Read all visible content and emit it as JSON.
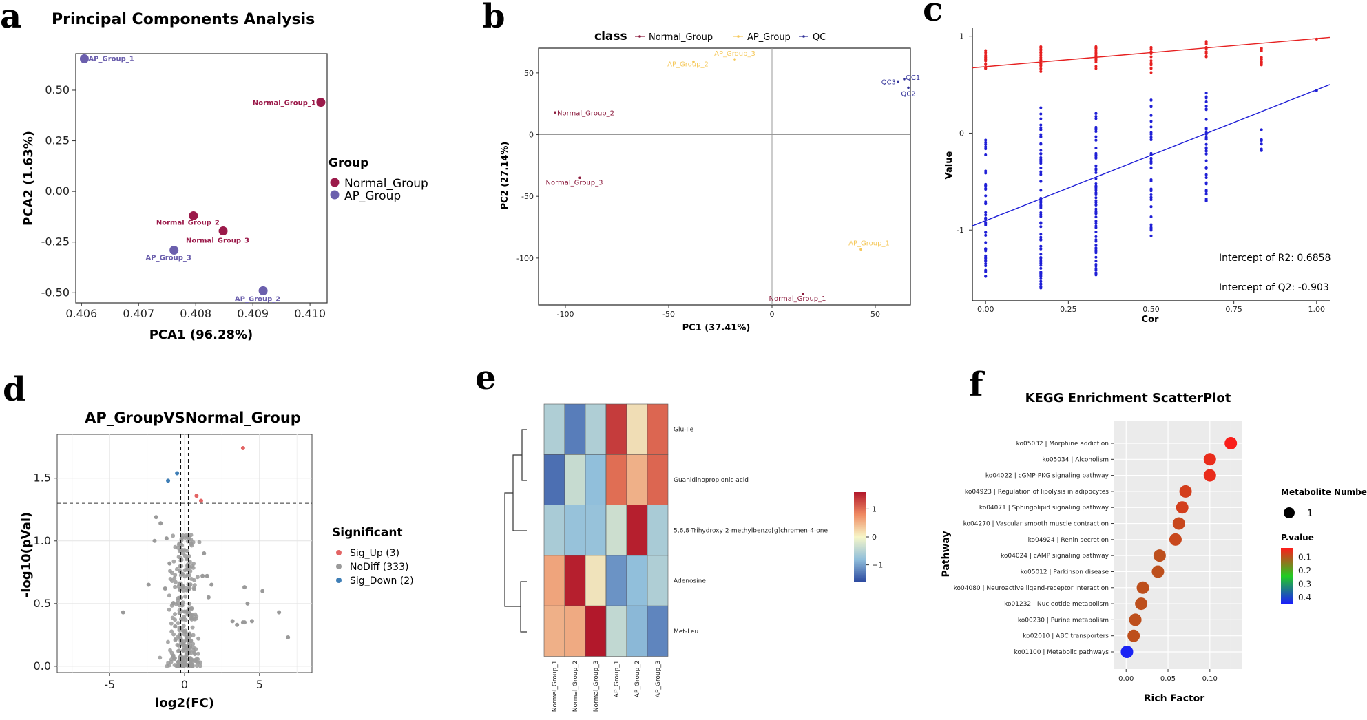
{
  "colors": {
    "normal": "#9b1a4a",
    "ap": "#6b5fad",
    "normal_b": "#8b1a3c",
    "ap_b": "#f5c85a",
    "qc": "#33339a",
    "red": "#e62020",
    "blue": "#1f1fd6",
    "sig_up": "#e36464",
    "nodiff": "#9a9a9a",
    "sig_down": "#3e7eb6"
  },
  "panels": {
    "a": "a",
    "b": "b",
    "c": "c",
    "d": "d",
    "e": "e",
    "f": "f"
  },
  "chart_data": [
    {
      "id": "a",
      "type": "scatter",
      "title": "Principal Components Analysis",
      "xlabel": "PCA1 (96.28%)",
      "ylabel": "PCA2 (1.63%)",
      "xlim": [
        0.4059,
        0.4103
      ],
      "ylim": [
        -0.55,
        0.68
      ],
      "xticks": [
        0.406,
        0.407,
        0.408,
        0.409,
        0.41
      ],
      "xtick_labels": [
        "0.406",
        "0.407",
        "0.408",
        "0.409",
        "0.410"
      ],
      "yticks": [
        -0.5,
        -0.25,
        0,
        0.25,
        0.5
      ],
      "ytick_labels": [
        "-0.50",
        "-0.25",
        "0.00",
        "0.25",
        "0.50"
      ],
      "legend_title": "Group",
      "legend": [
        "Normal_Group",
        "AP_Group"
      ],
      "points": [
        {
          "label": "AP_Group_1",
          "group": "ap",
          "x": 0.40605,
          "y": 0.655
        },
        {
          "label": "Normal_Group_1",
          "group": "normal",
          "x": 0.41019,
          "y": 0.44
        },
        {
          "label": "Normal_Group_2",
          "group": "normal",
          "x": 0.40796,
          "y": -0.12
        },
        {
          "label": "Normal_Group_3",
          "group": "normal",
          "x": 0.40848,
          "y": -0.195
        },
        {
          "label": "AP_Group_3",
          "group": "ap",
          "x": 0.40762,
          "y": -0.29
        },
        {
          "label": "AP_Group_2",
          "group": "ap",
          "x": 0.40918,
          "y": -0.49
        }
      ]
    },
    {
      "id": "b",
      "type": "scatter",
      "xlabel": "PC1 (37.41%)",
      "ylabel": "PC2 (27.14%)",
      "xlim": [
        -113,
        67
      ],
      "ylim": [
        -138,
        70
      ],
      "xticks": [
        -100,
        -50,
        0,
        50
      ],
      "xtick_labels": [
        "-100",
        "-50",
        "0",
        "50"
      ],
      "yticks": [
        50,
        0,
        -50,
        -100
      ],
      "ytick_labels": [
        "50",
        "0",
        "-50",
        "-100"
      ],
      "legend_title": "class",
      "legend": [
        "Normal_Group",
        "AP_Group",
        "QC"
      ],
      "points": [
        {
          "label": "AP_Group_3",
          "group": "ap",
          "x": -18,
          "y": 61
        },
        {
          "label": "AP_Group_2",
          "group": "ap",
          "x": -38,
          "y": 59
        },
        {
          "label": "Normal_Group_2",
          "group": "normal",
          "x": -105,
          "y": 18
        },
        {
          "label": "Normal_Group_3",
          "group": "normal",
          "x": -93,
          "y": -35
        },
        {
          "label": "QC3",
          "group": "qc",
          "x": 61,
          "y": 43
        },
        {
          "label": "QC1",
          "group": "qc",
          "x": 64,
          "y": 45
        },
        {
          "label": "QC2",
          "group": "qc",
          "x": 66,
          "y": 38
        },
        {
          "label": "AP_Group_1",
          "group": "ap",
          "x": 43,
          "y": -93
        },
        {
          "label": "Normal_Group_1",
          "group": "normal",
          "x": 15,
          "y": -129
        }
      ]
    },
    {
      "id": "c",
      "type": "scatter",
      "xlabel": "Cor",
      "ylabel": "Value",
      "xlim": [
        -0.04,
        1.04
      ],
      "ylim": [
        -1.73,
        1.09
      ],
      "xticks": [
        0,
        0.25,
        0.5,
        0.75,
        1
      ],
      "xtick_labels": [
        "0.00",
        "0.25",
        "0.50",
        "0.75",
        "1.00"
      ],
      "yticks": [
        1,
        0,
        -1
      ],
      "ytick_labels": [
        "1",
        "0",
        "-1"
      ],
      "r2_line": {
        "intercept": 0.686,
        "slope": 0.29
      },
      "q2_line": {
        "intercept": -0.903,
        "slope": 1.35
      },
      "annotations": [
        "Intercept of R2: 0.6858",
        "Intercept of Q2: -0.903"
      ]
    },
    {
      "id": "d",
      "type": "scatter",
      "title": "AP_GroupVSNormal_Group",
      "xlabel": "log2(FC)",
      "ylabel": "-log10(pVal)",
      "xlim": [
        -8.5,
        8.5
      ],
      "ylim": [
        -0.05,
        1.85
      ],
      "xticks": [
        -5,
        0,
        5
      ],
      "xtick_labels": [
        "-5",
        "0",
        "5"
      ],
      "yticks": [
        0,
        0.5,
        1,
        1.5
      ],
      "ytick_labels": [
        "0.0",
        "0.5",
        "1.0",
        "1.5"
      ],
      "vlines": [
        -0.263,
        0.263
      ],
      "hline": 1.3,
      "legend_title": "Significant",
      "legend": [
        "Sig_Up (3)",
        "NoDiff (333)",
        "Sig_Down (2)"
      ],
      "sig_up": [
        [
          3.9,
          1.74
        ],
        [
          0.8,
          1.36
        ],
        [
          1.1,
          1.32
        ]
      ],
      "sig_down": [
        [
          -1.1,
          1.48
        ],
        [
          -0.5,
          1.54
        ]
      ],
      "nodiff_outliers": [
        [
          -4.1,
          0.43
        ],
        [
          -2.4,
          0.65
        ],
        [
          -1.9,
          1.19
        ],
        [
          -1.6,
          1.14
        ],
        [
          -1.2,
          1.02
        ],
        [
          -2.0,
          1.0
        ],
        [
          3.5,
          0.33
        ],
        [
          3.2,
          0.36
        ],
        [
          3.9,
          0.35
        ],
        [
          4.0,
          0.35
        ],
        [
          4.5,
          0.36
        ],
        [
          4.2,
          0.5
        ],
        [
          4.0,
          0.63
        ],
        [
          5.2,
          0.6
        ],
        [
          6.3,
          0.43
        ],
        [
          6.9,
          0.23
        ],
        [
          1.6,
          0.55
        ],
        [
          1.2,
          0.72
        ],
        [
          1.5,
          0.72
        ],
        [
          1.8,
          0.65
        ],
        [
          1.3,
          0.9
        ],
        [
          -1.0,
          0.82
        ],
        [
          -1.3,
          0.62
        ]
      ]
    },
    {
      "id": "e",
      "type": "heatmap",
      "columns": [
        "Normal_Group_1",
        "Normal_Group_2",
        "Normal_Group_3",
        "AP_Group_1",
        "AP_Group_2",
        "AP_Group_3"
      ],
      "rows": [
        "Glu-Ile",
        "Guanidinopropionic acid",
        "5,6,8-Trihydroxy-2-methylbenzo[g]chromen-4-one",
        "Adenosine",
        "Met-Leu"
      ],
      "values": [
        [
          -0.55,
          -1.25,
          -0.55,
          1.35,
          0.15,
          1.05
        ],
        [
          -1.35,
          -0.35,
          -0.8,
          1.0,
          0.5,
          1.05
        ],
        [
          -0.6,
          -0.75,
          -0.75,
          -0.3,
          1.55,
          -0.6
        ],
        [
          0.6,
          1.55,
          0.1,
          -1.1,
          -0.8,
          -0.55
        ],
        [
          0.5,
          0.55,
          1.6,
          -0.4,
          -0.85,
          -1.2
        ]
      ],
      "scale_ticks": [
        1,
        0,
        -1
      ],
      "scale_tick_labels": [
        "1",
        "0",
        "−1"
      ],
      "vmin": -1.6,
      "vmax": 1.6
    },
    {
      "id": "f",
      "type": "scatter",
      "title": "KEGG Enrichment ScatterPlot",
      "xlabel": "Rich Factor",
      "ylabel": "Pathway",
      "xlim": [
        -0.015,
        0.138
      ],
      "xticks": [
        0,
        0.05,
        0.1
      ],
      "xtick_labels": [
        "0.00",
        "0.05",
        "0.10"
      ],
      "size_legend_title": "Metabolite Number",
      "size_legend_value": "1",
      "color_legend_title": "P.value",
      "color_ticks": [
        0.1,
        0.2,
        0.3,
        0.4
      ],
      "color_tick_labels": [
        "0.1",
        "0.2",
        "0.3",
        "0.4"
      ],
      "pathways": [
        {
          "name": "ko05032 | Morphine addiction",
          "rich": 0.125,
          "p": 0.045
        },
        {
          "name": "ko05034 | Alcoholism",
          "rich": 0.1,
          "p": 0.06
        },
        {
          "name": "ko04022 | cGMP-PKG signaling pathway",
          "rich": 0.1,
          "p": 0.06
        },
        {
          "name": "ko04923 | Regulation of lipolysis in adipocytes",
          "rich": 0.071,
          "p": 0.08
        },
        {
          "name": "ko04071 | Sphingolipid signaling pathway",
          "rich": 0.067,
          "p": 0.08
        },
        {
          "name": "ko04270 | Vascular smooth muscle contraction",
          "rich": 0.063,
          "p": 0.09
        },
        {
          "name": "ko04924 | Renin secretion",
          "rich": 0.059,
          "p": 0.09
        },
        {
          "name": "ko04024 | cAMP signaling pathway",
          "rich": 0.04,
          "p": 0.1
        },
        {
          "name": "ko05012 | Parkinson disease",
          "rich": 0.038,
          "p": 0.1
        },
        {
          "name": "ko04080 | Neuroactive ligand-receptor interaction",
          "rich": 0.02,
          "p": 0.1
        },
        {
          "name": "ko01232 | Nucleotide metabolism",
          "rich": 0.018,
          "p": 0.1
        },
        {
          "name": "ko00230 | Purine metabolism",
          "rich": 0.011,
          "p": 0.1
        },
        {
          "name": "ko02010 | ABC transporters",
          "rich": 0.009,
          "p": 0.1
        },
        {
          "name": "ko01100 | Metabolic pathways",
          "rich": 0.001,
          "p": 0.43
        }
      ]
    }
  ]
}
